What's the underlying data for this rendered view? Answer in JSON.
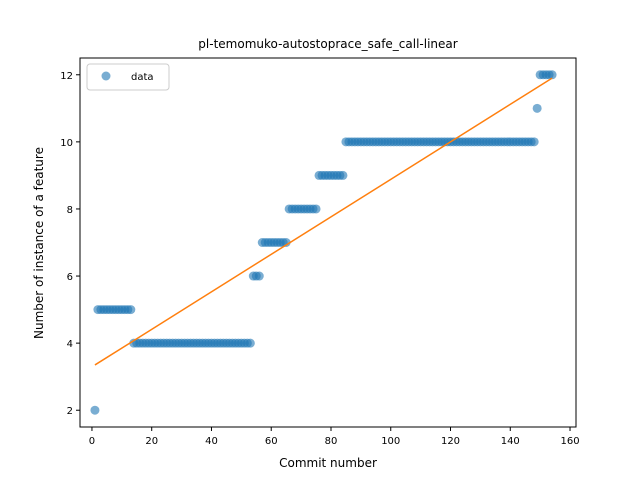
{
  "chart_data": {
    "type": "scatter",
    "title": "pl-temomuko-autostoprace_safe_call-linear",
    "xlabel": "Commit number",
    "ylabel": "Number of instance of a feature",
    "xlim": [
      -4,
      162
    ],
    "ylim": [
      1.5,
      12.5
    ],
    "xticks": [
      0,
      20,
      40,
      60,
      80,
      100,
      120,
      140,
      160
    ],
    "yticks": [
      2,
      4,
      6,
      8,
      10,
      12
    ],
    "legend": {
      "position": "top-left",
      "entries": [
        "data"
      ]
    },
    "grid": false,
    "colors": {
      "data": "#1f77b4",
      "fit": "#ff7f0e"
    },
    "series": [
      {
        "name": "data",
        "kind": "scatter",
        "points": [
          [
            1,
            2
          ],
          [
            2,
            5
          ],
          [
            3,
            5
          ],
          [
            4,
            5
          ],
          [
            5,
            5
          ],
          [
            6,
            5
          ],
          [
            7,
            5
          ],
          [
            8,
            5
          ],
          [
            9,
            5
          ],
          [
            10,
            5
          ],
          [
            11,
            5
          ],
          [
            12,
            5
          ],
          [
            13,
            5
          ],
          [
            14,
            4
          ],
          [
            15,
            4
          ],
          [
            16,
            4
          ],
          [
            17,
            4
          ],
          [
            18,
            4
          ],
          [
            19,
            4
          ],
          [
            20,
            4
          ],
          [
            21,
            4
          ],
          [
            22,
            4
          ],
          [
            23,
            4
          ],
          [
            24,
            4
          ],
          [
            25,
            4
          ],
          [
            26,
            4
          ],
          [
            27,
            4
          ],
          [
            28,
            4
          ],
          [
            29,
            4
          ],
          [
            30,
            4
          ],
          [
            31,
            4
          ],
          [
            32,
            4
          ],
          [
            33,
            4
          ],
          [
            34,
            4
          ],
          [
            35,
            4
          ],
          [
            36,
            4
          ],
          [
            37,
            4
          ],
          [
            38,
            4
          ],
          [
            39,
            4
          ],
          [
            40,
            4
          ],
          [
            41,
            4
          ],
          [
            42,
            4
          ],
          [
            43,
            4
          ],
          [
            44,
            4
          ],
          [
            45,
            4
          ],
          [
            46,
            4
          ],
          [
            47,
            4
          ],
          [
            48,
            4
          ],
          [
            49,
            4
          ],
          [
            50,
            4
          ],
          [
            51,
            4
          ],
          [
            52,
            4
          ],
          [
            53,
            4
          ],
          [
            54,
            6
          ],
          [
            55,
            6
          ],
          [
            56,
            6
          ],
          [
            57,
            7
          ],
          [
            58,
            7
          ],
          [
            59,
            7
          ],
          [
            60,
            7
          ],
          [
            61,
            7
          ],
          [
            62,
            7
          ],
          [
            63,
            7
          ],
          [
            64,
            7
          ],
          [
            65,
            7
          ],
          [
            66,
            8
          ],
          [
            67,
            8
          ],
          [
            68,
            8
          ],
          [
            69,
            8
          ],
          [
            70,
            8
          ],
          [
            71,
            8
          ],
          [
            72,
            8
          ],
          [
            73,
            8
          ],
          [
            74,
            8
          ],
          [
            75,
            8
          ],
          [
            76,
            9
          ],
          [
            77,
            9
          ],
          [
            78,
            9
          ],
          [
            79,
            9
          ],
          [
            80,
            9
          ],
          [
            81,
            9
          ],
          [
            82,
            9
          ],
          [
            83,
            9
          ],
          [
            84,
            9
          ],
          [
            85,
            10
          ],
          [
            86,
            10
          ],
          [
            87,
            10
          ],
          [
            88,
            10
          ],
          [
            89,
            10
          ],
          [
            90,
            10
          ],
          [
            91,
            10
          ],
          [
            92,
            10
          ],
          [
            93,
            10
          ],
          [
            94,
            10
          ],
          [
            95,
            10
          ],
          [
            96,
            10
          ],
          [
            97,
            10
          ],
          [
            98,
            10
          ],
          [
            99,
            10
          ],
          [
            100,
            10
          ],
          [
            101,
            10
          ],
          [
            102,
            10
          ],
          [
            103,
            10
          ],
          [
            104,
            10
          ],
          [
            105,
            10
          ],
          [
            106,
            10
          ],
          [
            107,
            10
          ],
          [
            108,
            10
          ],
          [
            109,
            10
          ],
          [
            110,
            10
          ],
          [
            111,
            10
          ],
          [
            112,
            10
          ],
          [
            113,
            10
          ],
          [
            114,
            10
          ],
          [
            115,
            10
          ],
          [
            116,
            10
          ],
          [
            117,
            10
          ],
          [
            118,
            10
          ],
          [
            119,
            10
          ],
          [
            120,
            10
          ],
          [
            121,
            10
          ],
          [
            122,
            10
          ],
          [
            123,
            10
          ],
          [
            124,
            10
          ],
          [
            125,
            10
          ],
          [
            126,
            10
          ],
          [
            127,
            10
          ],
          [
            128,
            10
          ],
          [
            129,
            10
          ],
          [
            130,
            10
          ],
          [
            131,
            10
          ],
          [
            132,
            10
          ],
          [
            133,
            10
          ],
          [
            134,
            10
          ],
          [
            135,
            10
          ],
          [
            136,
            10
          ],
          [
            137,
            10
          ],
          [
            138,
            10
          ],
          [
            139,
            10
          ],
          [
            140,
            10
          ],
          [
            141,
            10
          ],
          [
            142,
            10
          ],
          [
            143,
            10
          ],
          [
            144,
            10
          ],
          [
            145,
            10
          ],
          [
            146,
            10
          ],
          [
            147,
            10
          ],
          [
            148,
            10
          ],
          [
            149,
            11
          ],
          [
            150,
            12
          ],
          [
            151,
            12
          ],
          [
            152,
            12
          ],
          [
            153,
            12
          ],
          [
            154,
            12
          ]
        ]
      },
      {
        "kind": "line",
        "points": [
          [
            1,
            3.35
          ],
          [
            154,
            11.9
          ]
        ]
      }
    ]
  }
}
